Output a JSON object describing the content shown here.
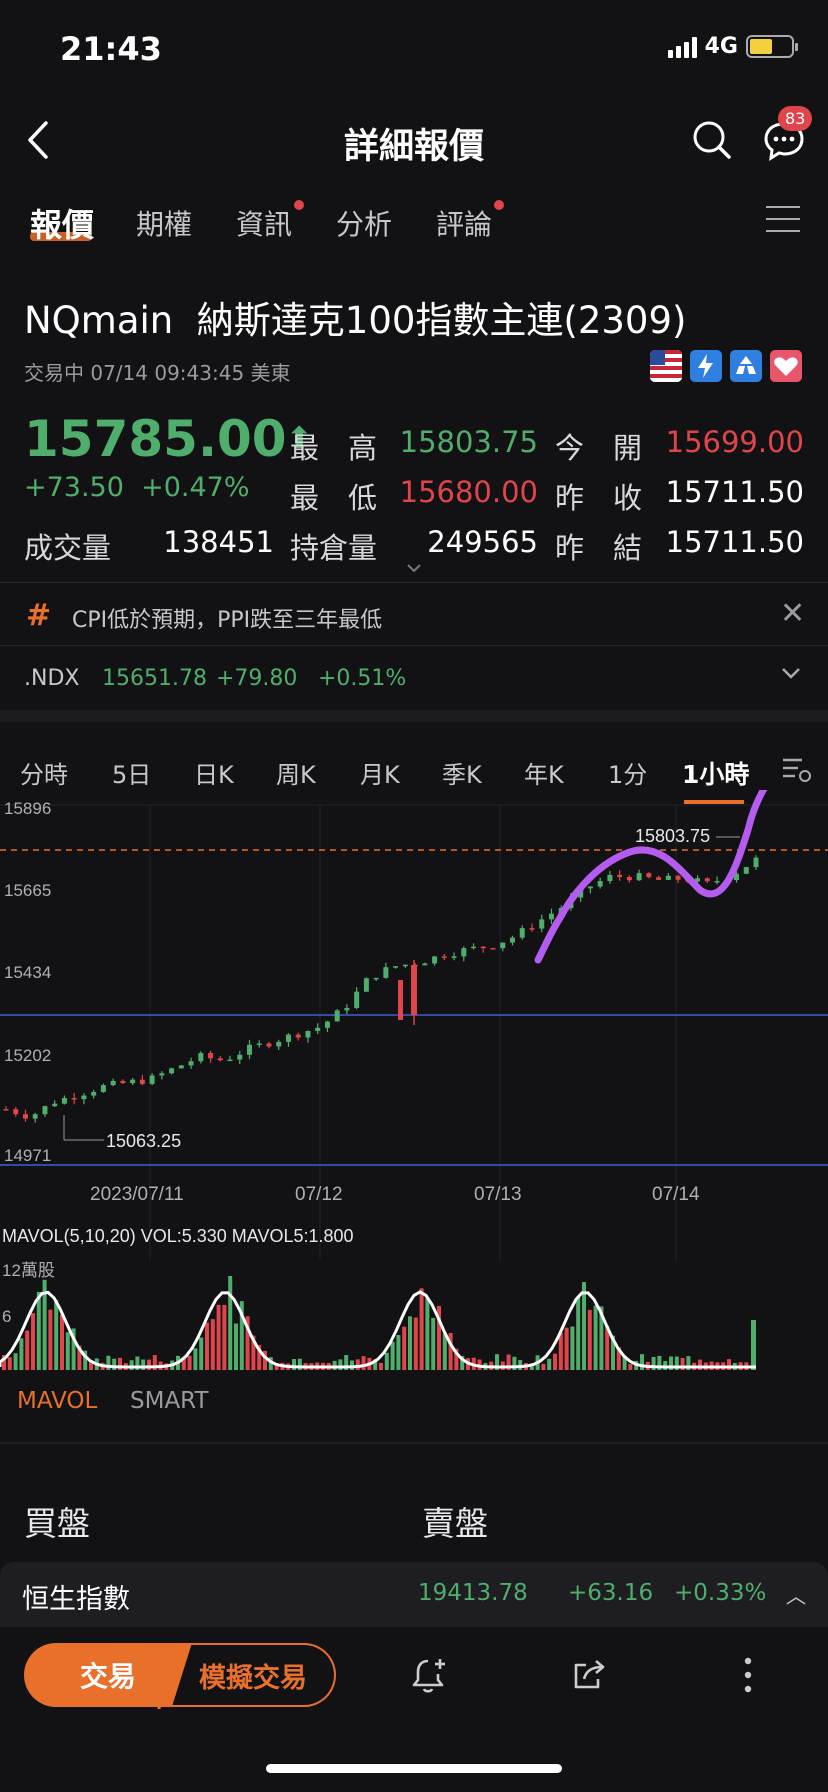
{
  "status": {
    "time": "21:43",
    "network": "4G"
  },
  "nav": {
    "title": "詳細報價",
    "badge": "83"
  },
  "tabs": [
    "報價",
    "期權",
    "資訊",
    "分析",
    "評論"
  ],
  "quote": {
    "symbol": "NQmain",
    "name": "納斯達克100指數主連(2309)",
    "trade_status": "交易中 07/14 09:43:45 美東",
    "price": "15785.00",
    "arrow": "⬆",
    "change": "+73.50",
    "change_pct": "+0.47%",
    "high_label": "最　高",
    "high": "15803.75",
    "open_label": "今　開",
    "open": "15699.00",
    "low_label": "最　低",
    "low": "15680.00",
    "prev_close_label": "昨　收",
    "prev_close": "15711.50",
    "volume_label": "成交量",
    "volume": "138451",
    "oi_label": "持倉量",
    "oi": "249565",
    "prev_settle_label": "昨　結",
    "prev_settle": "15711.50"
  },
  "news": {
    "text": "CPI低於預期，PPI跌至三年最低"
  },
  "ndx": {
    "name": ".NDX",
    "price": "15651.78",
    "change": "+79.80",
    "change_pct": "+0.51%"
  },
  "chart_tabs": [
    "分時",
    "5日",
    "日K",
    "周K",
    "月K",
    "季K",
    "年K",
    "1分",
    "1小時"
  ],
  "chart_data": {
    "type": "candlestick",
    "interval": "1小時",
    "y_ticks": [
      "15896",
      "15665",
      "15434",
      "15202",
      "14971"
    ],
    "x_ticks": [
      "2023/07/11",
      "07/12",
      "07/13",
      "07/14"
    ],
    "ylim": [
      14971,
      15896
    ],
    "high_marker": "15803.75",
    "low_marker": "15063.25",
    "close_trend": [
      15120,
      15100,
      15140,
      15160,
      15180,
      15190,
      15200,
      15230,
      15260,
      15250,
      15280,
      15300,
      15320,
      15340,
      15390,
      15470,
      15500,
      15510,
      15530,
      15545,
      15555,
      15580,
      15620,
      15660,
      15710,
      15740,
      15740,
      15730,
      15735,
      15720,
      15745,
      15785
    ]
  },
  "volume_chart": {
    "legend": "MAVOL(5,10,20)  VOL:5.330  MAVOL5:1.800",
    "y_max_label": "12萬股",
    "y_mid_label": "6"
  },
  "indicator_tabs": [
    "MAVOL",
    "SMART"
  ],
  "order_book": {
    "buy": "買盤",
    "sell": "賣盤"
  },
  "hs_index": {
    "name": "恒生指數",
    "price": "19413.78",
    "change": "+63.16",
    "change_pct": "+0.33%"
  },
  "bottom": {
    "trade": "交易",
    "sim_trade": "模擬交易"
  }
}
